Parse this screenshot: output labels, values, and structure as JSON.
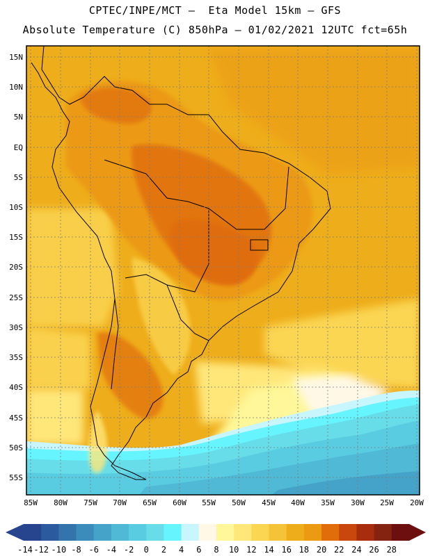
{
  "header": {
    "line1": "CPTEC/INPE/MCT –  Eta Model 15km – GFS",
    "line2": "Absolute Temperature (C) 850hPa – 01/02/2021 12UTC fct=65h"
  },
  "latitude_labels": [
    "15N",
    "10N",
    "5N",
    "EQ",
    "5S",
    "10S",
    "15S",
    "20S",
    "25S",
    "30S",
    "35S",
    "40S",
    "45S",
    "50S",
    "55S"
  ],
  "longitude_labels": [
    "85W",
    "80W",
    "75W",
    "70W",
    "65W",
    "60W",
    "55W",
    "50W",
    "45W",
    "40W",
    "35W",
    "30W",
    "25W",
    "20W"
  ],
  "colorbar": {
    "labels": [
      "-14",
      "-12",
      "-10",
      "-8",
      "-6",
      "-4",
      "-2",
      "0",
      "2",
      "4",
      "6",
      "8",
      "10",
      "12",
      "14",
      "16",
      "18",
      "20",
      "22",
      "24",
      "26",
      "28"
    ],
    "colors": [
      "#27448f",
      "#2c5a9e",
      "#3474ad",
      "#3c8cbb",
      "#45a3c9",
      "#4fb9d6",
      "#5acce2",
      "#66dde8",
      "#66f5ff",
      "#c8f6ff",
      "#fff8e6",
      "#fff799",
      "#ffe77a",
      "#fbd652",
      "#f4c338",
      "#eead1a",
      "#ec9a12",
      "#e06d0a",
      "#c9470c",
      "#a72d0e",
      "#84230f",
      "#6e0f0f"
    ]
  }
}
